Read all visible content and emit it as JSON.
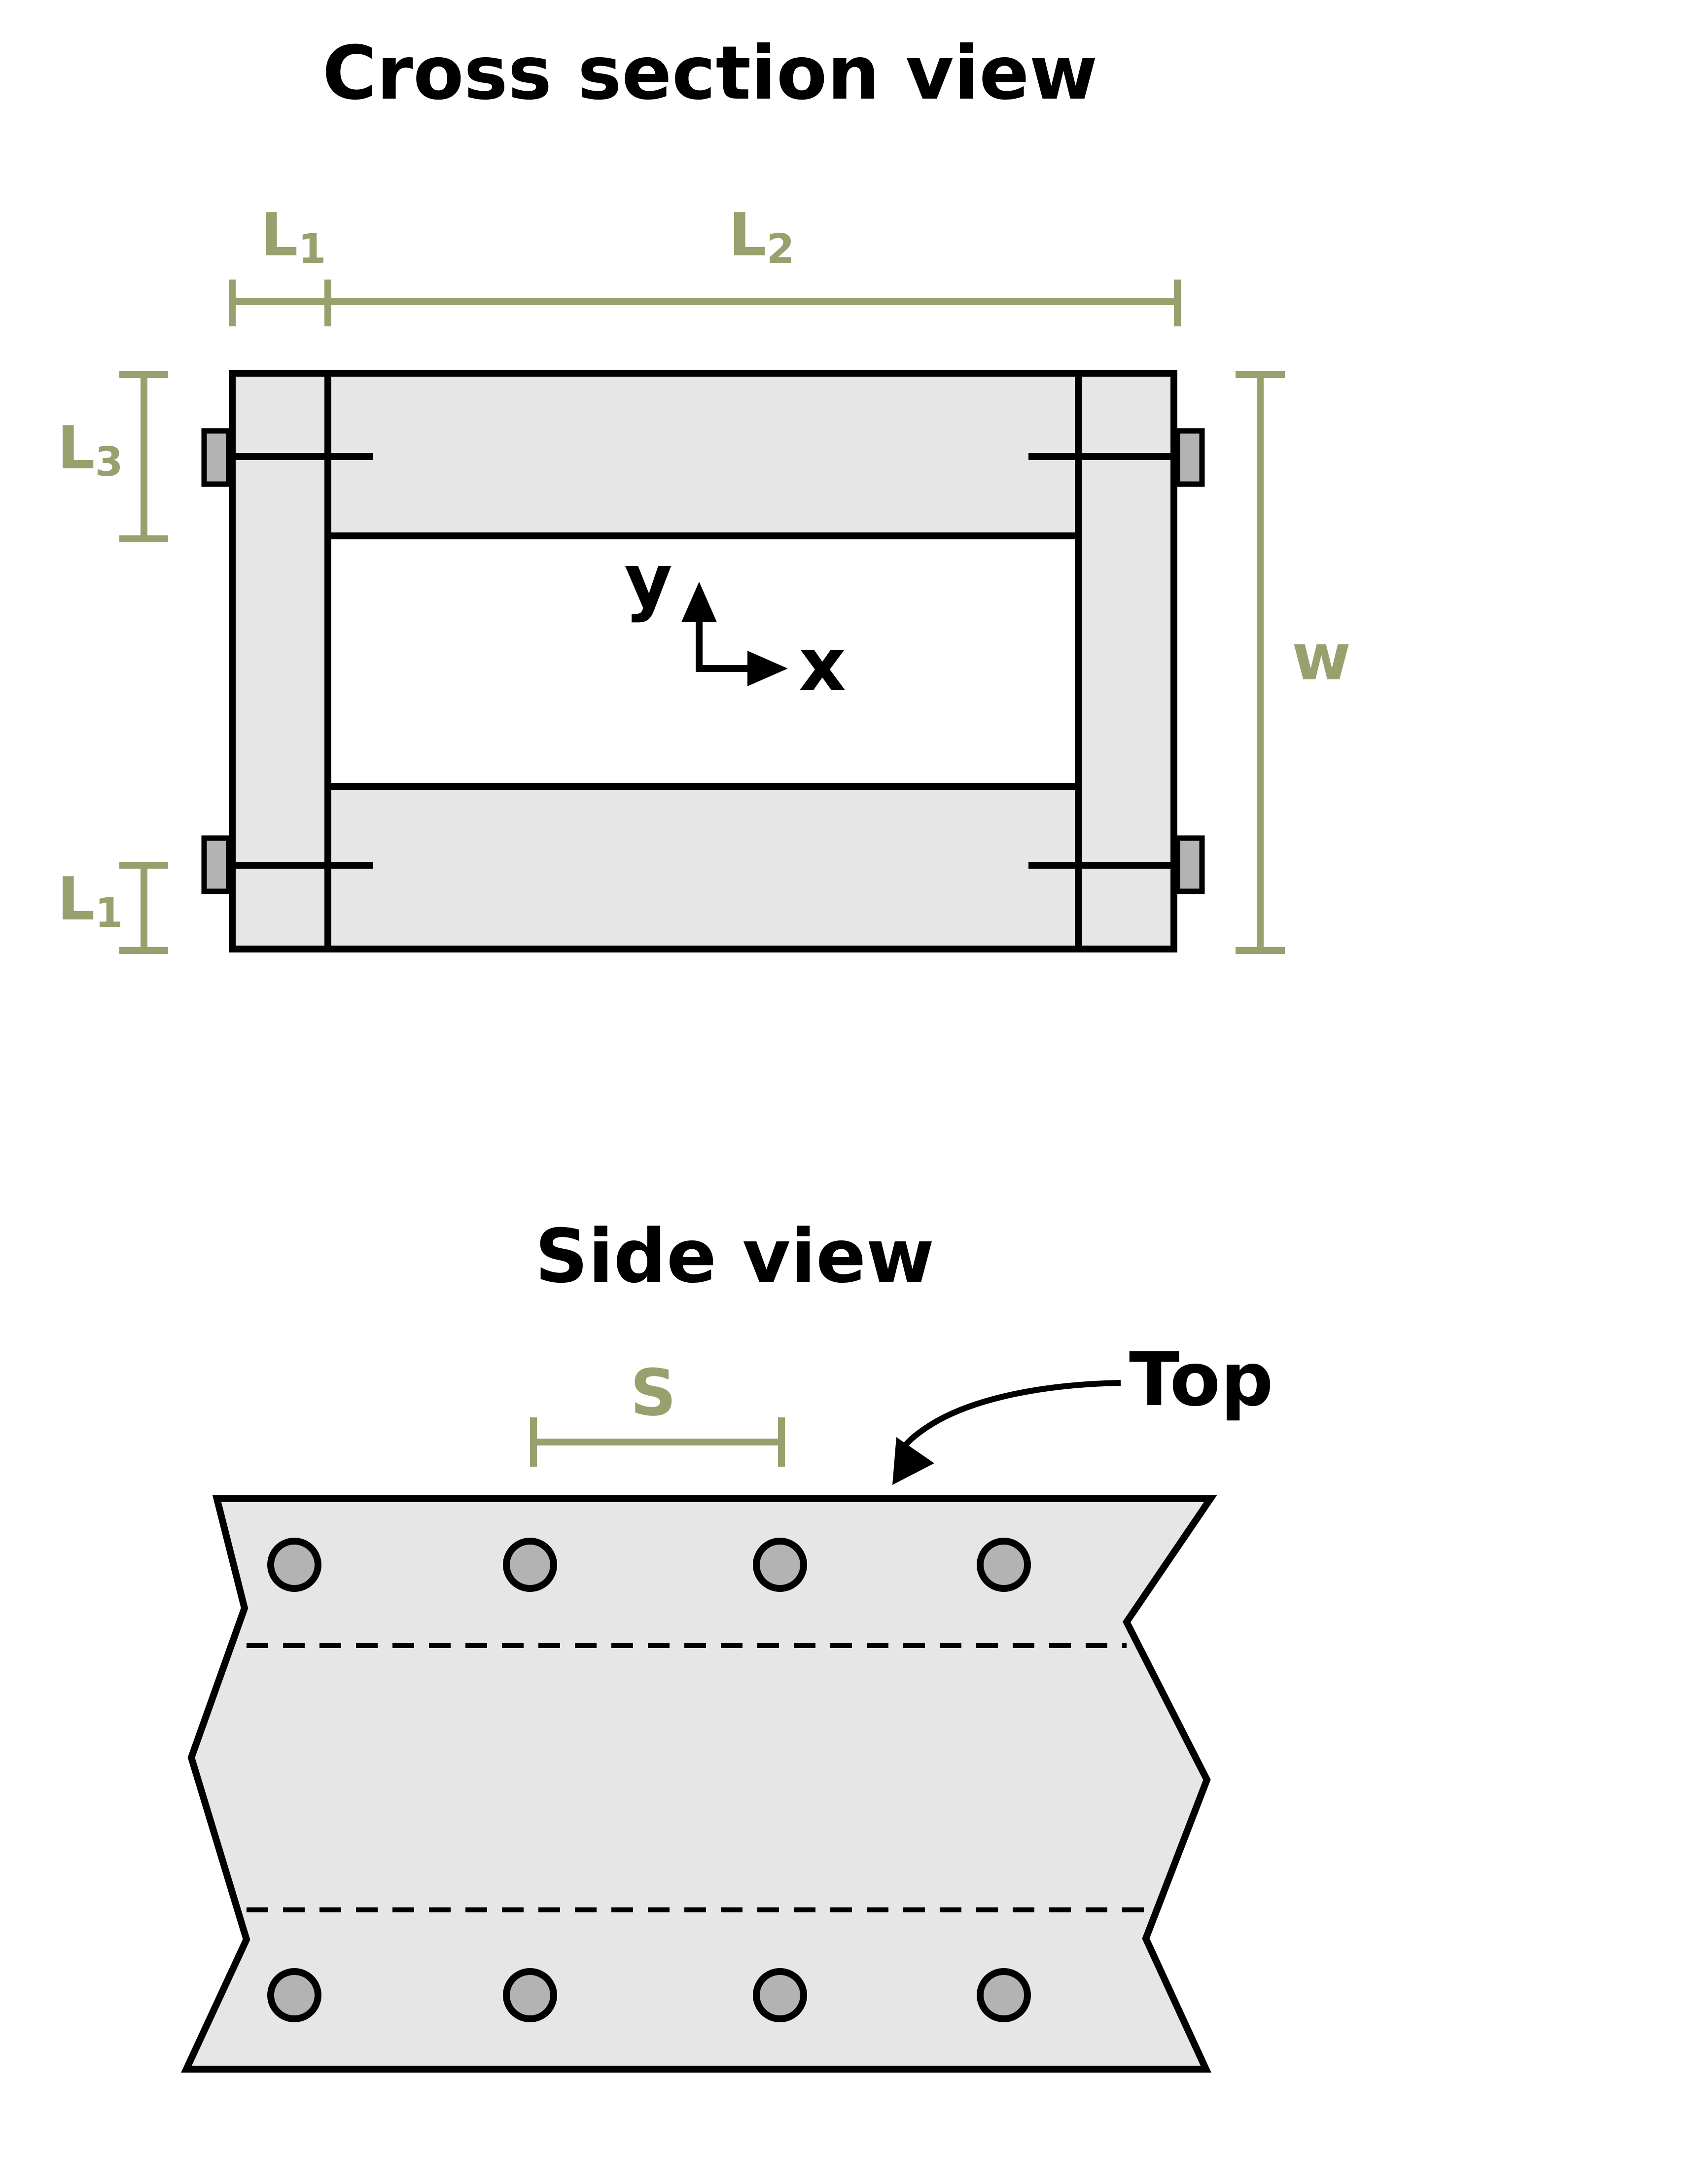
{
  "titles": {
    "cross_section": "Cross section view",
    "side": "Side view"
  },
  "cross_section": {
    "dimensions": {
      "L1_top": {
        "main": "L",
        "sub": "1"
      },
      "L2": {
        "main": "L",
        "sub": "2"
      },
      "L3": {
        "main": "L",
        "sub": "3"
      },
      "L1_left": {
        "main": "L",
        "sub": "1"
      },
      "w": "w"
    },
    "axes": {
      "y": "y",
      "x": "x"
    }
  },
  "side_view": {
    "spacing_label": "S",
    "callout": "Top"
  },
  "colors": {
    "dimension": "#9aa06d",
    "fill": "#e6e6e6",
    "fastener": "#b3b3b3",
    "stroke": "#000000"
  }
}
